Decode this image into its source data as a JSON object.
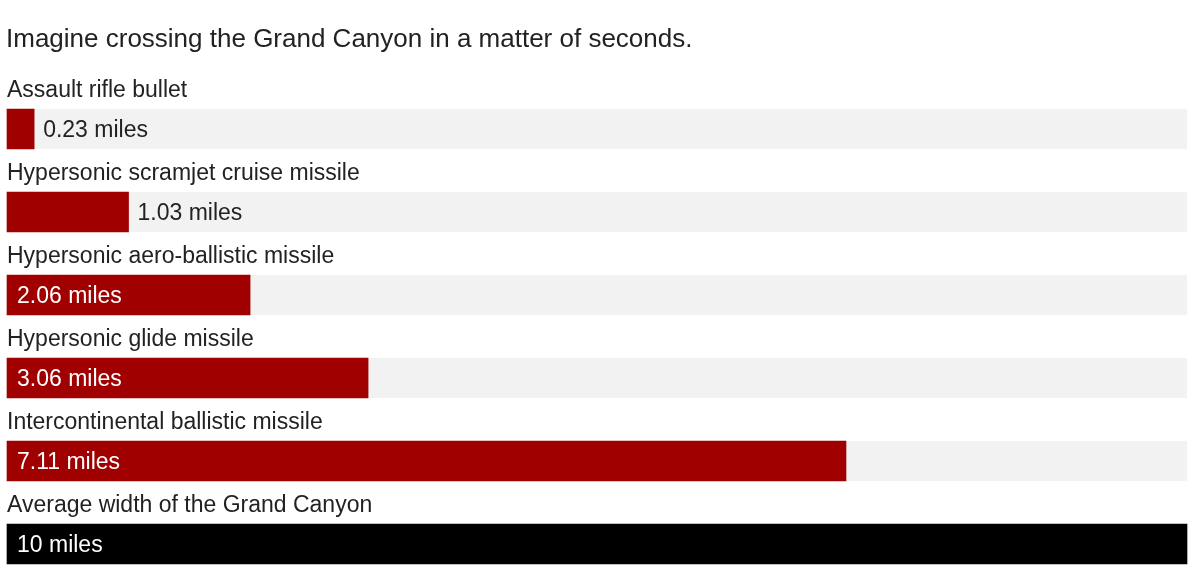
{
  "chart_data": {
    "type": "bar",
    "orientation": "horizontal",
    "title": "Imagine crossing the Grand Canyon in a matter of seconds.",
    "categories": [
      "Assault rifle bullet",
      "Hypersonic scramjet cruise missile",
      "Hypersonic aero-ballistic missile",
      "Hypersonic glide missile",
      "Intercontinental ballistic missile",
      "Average width of the Grand Canyon"
    ],
    "values": [
      0.23,
      1.03,
      2.06,
      3.06,
      7.11,
      10
    ],
    "colors": [
      "#a00000",
      "#a00000",
      "#a00000",
      "#a00000",
      "#a00000",
      "#000000"
    ],
    "value_labels": [
      "0.23 miles",
      "1.03 miles",
      "2.06 miles",
      "3.06 miles",
      "7.11 miles",
      "10 miles"
    ],
    "xlim": [
      0,
      10
    ],
    "tick_labels": "y"
  }
}
